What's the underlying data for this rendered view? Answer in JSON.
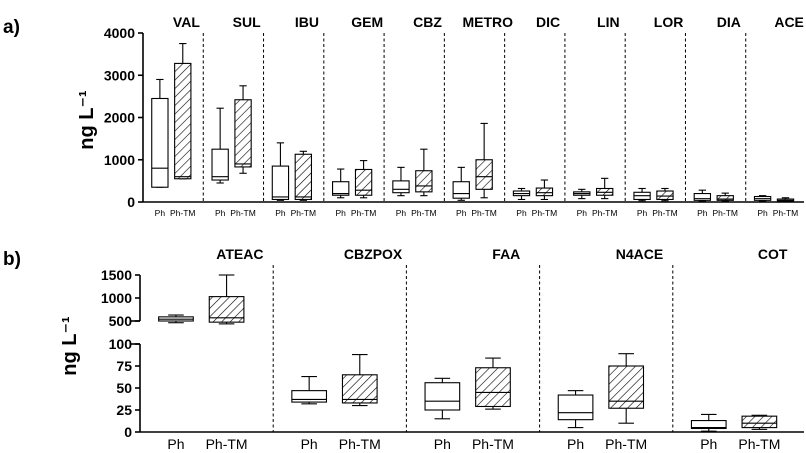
{
  "chart_data": [
    {
      "panel_label": "a)",
      "type": "boxplot",
      "ylabel": "ng L⁻¹",
      "ylim": [
        0,
        4000
      ],
      "yticks": [
        "0",
        "1000",
        "2000",
        "3000",
        "4000"
      ],
      "categories": [
        "Ph",
        "Ph-TM"
      ],
      "legend": "none",
      "hatch_series": "Ph-TM",
      "groups": [
        {
          "label": "VAL",
          "boxes": [
            {
              "cat": "Ph",
              "min": 350,
              "q1": 350,
              "median": 800,
              "q3": 2450,
              "max": 2900
            },
            {
              "cat": "Ph-TM",
              "min": 550,
              "q1": 550,
              "median": 600,
              "q3": 3280,
              "max": 3750
            }
          ]
        },
        {
          "label": "SUL",
          "boxes": [
            {
              "cat": "Ph",
              "min": 450,
              "q1": 520,
              "median": 600,
              "q3": 1250,
              "max": 2220
            },
            {
              "cat": "Ph-TM",
              "min": 680,
              "q1": 830,
              "median": 900,
              "q3": 2420,
              "max": 2750
            }
          ]
        },
        {
          "label": "IBU",
          "boxes": [
            {
              "cat": "Ph",
              "min": 40,
              "q1": 60,
              "median": 120,
              "q3": 850,
              "max": 1400
            },
            {
              "cat": "Ph-TM",
              "min": 40,
              "q1": 60,
              "median": 120,
              "q3": 1130,
              "max": 1200
            }
          ]
        },
        {
          "label": "GEM",
          "boxes": [
            {
              "cat": "Ph",
              "min": 100,
              "q1": 160,
              "median": 200,
              "q3": 480,
              "max": 780
            },
            {
              "cat": "Ph-TM",
              "min": 100,
              "q1": 160,
              "median": 280,
              "q3": 770,
              "max": 980
            }
          ]
        },
        {
          "label": "CBZ",
          "boxes": [
            {
              "cat": "Ph",
              "min": 150,
              "q1": 220,
              "median": 300,
              "q3": 500,
              "max": 820
            },
            {
              "cat": "Ph-TM",
              "min": 150,
              "q1": 240,
              "median": 380,
              "q3": 740,
              "max": 1250
            }
          ]
        },
        {
          "label": "METRO",
          "boxes": [
            {
              "cat": "Ph",
              "min": 40,
              "q1": 90,
              "median": 200,
              "q3": 480,
              "max": 820
            },
            {
              "cat": "Ph-TM",
              "min": 100,
              "q1": 300,
              "median": 600,
              "q3": 1000,
              "max": 1860
            }
          ]
        },
        {
          "label": "DIC",
          "boxes": [
            {
              "cat": "Ph",
              "min": 60,
              "q1": 150,
              "median": 200,
              "q3": 260,
              "max": 320
            },
            {
              "cat": "Ph-TM",
              "min": 60,
              "q1": 150,
              "median": 220,
              "q3": 330,
              "max": 520
            }
          ]
        },
        {
          "label": "LIN",
          "boxes": [
            {
              "cat": "Ph",
              "min": 80,
              "q1": 160,
              "median": 200,
              "q3": 240,
              "max": 300
            },
            {
              "cat": "Ph-TM",
              "min": 80,
              "q1": 160,
              "median": 230,
              "q3": 320,
              "max": 560
            }
          ]
        },
        {
          "label": "LOR",
          "boxes": [
            {
              "cat": "Ph",
              "min": 30,
              "q1": 60,
              "median": 150,
              "q3": 230,
              "max": 320
            },
            {
              "cat": "Ph-TM",
              "min": 30,
              "q1": 60,
              "median": 140,
              "q3": 260,
              "max": 320
            }
          ]
        },
        {
          "label": "DIA",
          "boxes": [
            {
              "cat": "Ph",
              "min": 20,
              "q1": 40,
              "median": 80,
              "q3": 200,
              "max": 280
            },
            {
              "cat": "Ph-TM",
              "min": 20,
              "q1": 40,
              "median": 70,
              "q3": 150,
              "max": 210
            }
          ]
        },
        {
          "label": "ACE",
          "boxes": [
            {
              "cat": "Ph",
              "min": 20,
              "q1": 40,
              "median": 80,
              "q3": 130,
              "max": 150
            },
            {
              "cat": "Ph-TM",
              "min": 10,
              "q1": 20,
              "median": 40,
              "q3": 70,
              "max": 100
            }
          ]
        }
      ]
    },
    {
      "panel_label": "b)",
      "type": "boxplot",
      "ylabel": "ng L⁻¹",
      "axis_break": {
        "lower_range": [
          0,
          100
        ],
        "upper_range": [
          500,
          1500
        ]
      },
      "yticks_lower": [
        "0",
        "25",
        "50",
        "75",
        "100"
      ],
      "yticks_upper": [
        "500",
        "1000",
        "1500"
      ],
      "categories": [
        "Ph",
        "Ph-TM"
      ],
      "legend": "none",
      "hatch_series": "Ph-TM",
      "groups": [
        {
          "label": "ATEAC",
          "boxes": [
            {
              "cat": "Ph",
              "min": 470,
              "q1": 500,
              "median": 540,
              "q3": 590,
              "max": 630
            },
            {
              "cat": "Ph-TM",
              "min": 450,
              "q1": 480,
              "median": 570,
              "q3": 1030,
              "max": 1500
            }
          ]
        },
        {
          "label": "CBZPOX",
          "boxes": [
            {
              "cat": "Ph",
              "min": 32,
              "q1": 34,
              "median": 37,
              "q3": 47,
              "max": 63
            },
            {
              "cat": "Ph-TM",
              "min": 30,
              "q1": 33,
              "median": 37,
              "q3": 65,
              "max": 88
            }
          ]
        },
        {
          "label": "FAA",
          "boxes": [
            {
              "cat": "Ph",
              "min": 15,
              "q1": 25,
              "median": 35,
              "q3": 56,
              "max": 61
            },
            {
              "cat": "Ph-TM",
              "min": 26,
              "q1": 29,
              "median": 45,
              "q3": 73,
              "max": 84
            }
          ]
        },
        {
          "label": "N4ACE",
          "boxes": [
            {
              "cat": "Ph",
              "min": 5,
              "q1": 14,
              "median": 22,
              "q3": 42,
              "max": 47
            },
            {
              "cat": "Ph-TM",
              "min": 10,
              "q1": 27,
              "median": 35,
              "q3": 75,
              "max": 89
            }
          ]
        },
        {
          "label": "COT",
          "boxes": [
            {
              "cat": "Ph",
              "min": 1,
              "q1": 4,
              "median": 5,
              "q3": 13,
              "max": 20
            },
            {
              "cat": "Ph-TM",
              "min": 3,
              "q1": 5,
              "median": 10,
              "q3": 18,
              "max": 19
            }
          ]
        }
      ]
    }
  ]
}
